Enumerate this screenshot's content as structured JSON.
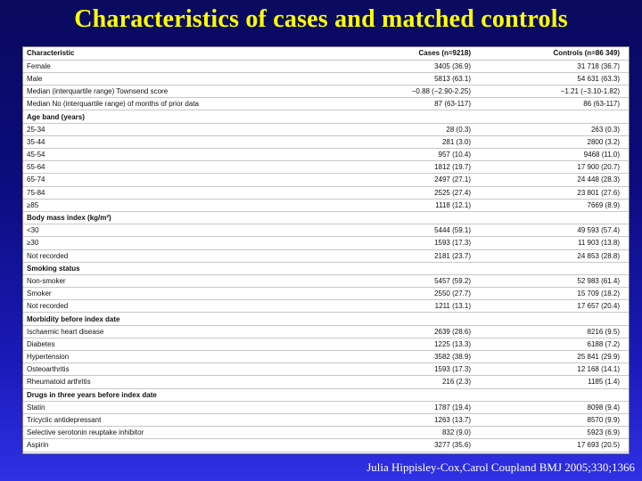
{
  "title": "Characteristics of cases and matched controls",
  "table": {
    "headers": [
      "Characteristic",
      "Cases  (n=9218)",
      "Controls  (n=86 349)"
    ],
    "rows": [
      {
        "type": "data",
        "cells": [
          "Female",
          "3405  (36.9)",
          "31 718  (36.7)"
        ]
      },
      {
        "type": "data",
        "cells": [
          "Male",
          "5813  (63.1)",
          "54 631  (63.3)"
        ]
      },
      {
        "type": "data",
        "cells": [
          "Median (interquartile range) Townsend score",
          "−0.88  (−2.90-2.25)",
          "−1.21  (−3.10-1.82)"
        ]
      },
      {
        "type": "data",
        "cells": [
          "Median No (interquartile range) of months of prior data",
          "87  (63-117)",
          "86  (63-117)"
        ]
      },
      {
        "type": "section",
        "cells": [
          "Age band (years)",
          "",
          ""
        ]
      },
      {
        "type": "data",
        "cells": [
          "25-34",
          "28  (0.3)",
          "263  (0.3)"
        ]
      },
      {
        "type": "data",
        "cells": [
          "35-44",
          "281  (3.0)",
          "2800  (3.2)"
        ]
      },
      {
        "type": "data",
        "cells": [
          "45-54",
          "957  (10.4)",
          "9468  (11.0)"
        ]
      },
      {
        "type": "data",
        "cells": [
          "55-64",
          "1812  (19.7)",
          "17 900  (20.7)"
        ]
      },
      {
        "type": "data",
        "cells": [
          "65-74",
          "2497  (27.1)",
          "24 448  (28.3)"
        ]
      },
      {
        "type": "data",
        "cells": [
          "75-84",
          "2525  (27.4)",
          "23 801  (27.6)"
        ]
      },
      {
        "type": "data",
        "cells": [
          "≥85",
          "1118  (12.1)",
          "7669  (8.9)"
        ]
      },
      {
        "type": "section",
        "cells": [
          "Body mass index (kg/m²)",
          "",
          ""
        ]
      },
      {
        "type": "data",
        "cells": [
          "<30",
          "5444  (59.1)",
          "49 593  (57.4)"
        ]
      },
      {
        "type": "data",
        "cells": [
          "≥30",
          "1593  (17.3)",
          "11 903  (13.8)"
        ]
      },
      {
        "type": "data",
        "cells": [
          "Not recorded",
          "2181  (23.7)",
          "24 853  (28.8)"
        ]
      },
      {
        "type": "section",
        "cells": [
          "Smoking status",
          "",
          ""
        ]
      },
      {
        "type": "data",
        "cells": [
          "Non-smoker",
          "5457  (59.2)",
          "52 983  (61.4)"
        ]
      },
      {
        "type": "data",
        "cells": [
          "Smoker",
          "2550  (27.7)",
          "15 709  (18.2)"
        ]
      },
      {
        "type": "data",
        "cells": [
          "Not recorded",
          "1211  (13.1)",
          "17 657  (20.4)"
        ]
      },
      {
        "type": "section",
        "cells": [
          "Morbidity before index date",
          "",
          ""
        ]
      },
      {
        "type": "data",
        "cells": [
          "Ischaemic heart disease",
          "2639  (28.6)",
          "8216  (9.5)"
        ]
      },
      {
        "type": "data",
        "cells": [
          "Diabetes",
          "1225  (13.3)",
          "6188  (7.2)"
        ]
      },
      {
        "type": "data",
        "cells": [
          "Hypertension",
          "3582  (38.9)",
          "25 841  (29.9)"
        ]
      },
      {
        "type": "data",
        "cells": [
          "Osteoarthritis",
          "1593  (17.3)",
          "12 168  (14.1)"
        ]
      },
      {
        "type": "data",
        "cells": [
          "Rheumatoid arthritis",
          "216  (2.3)",
          "1185  (1.4)"
        ]
      },
      {
        "type": "section",
        "cells": [
          "Drugs in three years before index date",
          "",
          ""
        ]
      },
      {
        "type": "data",
        "cells": [
          "Statin",
          "1787  (19.4)",
          "8098  (9.4)"
        ]
      },
      {
        "type": "data",
        "cells": [
          "Tricyclic antidepressant",
          "1263  (13.7)",
          "8570  (9.9)"
        ]
      },
      {
        "type": "data",
        "cells": [
          "Selective serotonin reuptake inhibitor",
          "832  (9.0)",
          "5923  (6.9)"
        ]
      },
      {
        "type": "data",
        "cells": [
          "Aspirin",
          "3277  (35.6)",
          "17 693  (20.5)"
        ]
      }
    ]
  },
  "citation": "Julia Hippisley-Cox,Carol Coupland BMJ 2005;330;1366",
  "colors": {
    "title": "#ffff00",
    "background_top": "#0a0a5e",
    "background_bottom": "#3030e6",
    "citation": "#ffffff"
  }
}
